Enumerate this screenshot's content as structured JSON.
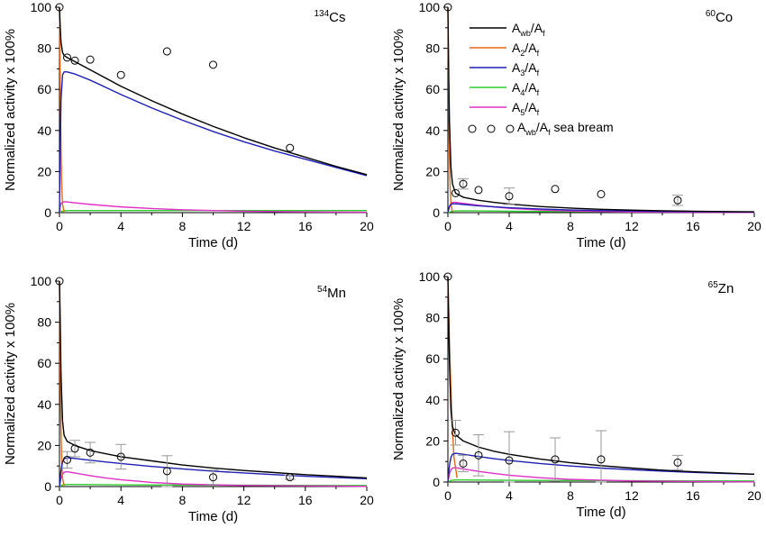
{
  "legend": {
    "labels": [
      {
        "sym": "A",
        "sub": "wb",
        "tail": "/A",
        "tsub": "f",
        "extra": ""
      },
      {
        "sym": "A",
        "sub": "2",
        "tail": "/A",
        "tsub": "f",
        "extra": ""
      },
      {
        "sym": "A",
        "sub": "3",
        "tail": "/A",
        "tsub": "f",
        "extra": ""
      },
      {
        "sym": "A",
        "sub": "4",
        "tail": "/A",
        "tsub": "f",
        "extra": ""
      },
      {
        "sym": "A",
        "sub": "5",
        "tail": "/A",
        "tsub": "f",
        "extra": ""
      },
      {
        "sym": "A",
        "sub": "wb",
        "tail": "/A",
        "tsub": "f",
        "extra": " sea bream"
      }
    ],
    "colors": [
      "#000000",
      "#e8671c",
      "#1f1fb4",
      "#2ecc2e",
      "#e030c8",
      "#000000"
    ]
  },
  "chart_data": [
    {
      "type": "line",
      "nuclide_sup": "134",
      "nuclide": "Cs",
      "xlabel": "Time (d)",
      "ylabel": "Normalized activity x 100%",
      "xlim": [
        0,
        20
      ],
      "ylim": [
        0,
        100
      ],
      "xticks": [
        0,
        4,
        8,
        12,
        16,
        20
      ],
      "yticks": [
        0,
        20,
        40,
        60,
        80,
        100
      ],
      "series": [
        {
          "x": [
            0,
            0.05,
            0.1,
            0.2,
            0.3,
            0.5,
            1,
            2,
            3,
            4,
            6,
            8,
            10,
            12,
            14,
            16,
            18,
            20
          ],
          "y": [
            100,
            90,
            83,
            78,
            76.5,
            75.5,
            73.5,
            69.5,
            65.5,
            61.5,
            54.5,
            48,
            42,
            36.5,
            31.5,
            27,
            22.5,
            18.5
          ]
        },
        {
          "x": [
            0,
            0.03,
            0.06,
            0.1,
            0.15,
            0.2,
            0.3
          ],
          "y": [
            100,
            80,
            55,
            30,
            12,
            4,
            0.5
          ]
        },
        {
          "x": [
            0,
            0.05,
            0.1,
            0.2,
            0.3,
            0.5,
            1,
            2,
            3,
            4,
            6,
            8,
            10,
            12,
            14,
            16,
            18,
            20
          ],
          "y": [
            0,
            30,
            55,
            67,
            68.5,
            68.5,
            67.5,
            64.5,
            61,
            57.5,
            51,
            45,
            39.5,
            34.5,
            30,
            26,
            22,
            18
          ]
        },
        {
          "x": [
            0,
            0.2,
            0.5,
            1,
            5,
            10,
            20
          ],
          "y": [
            0,
            0.8,
            1,
            1,
            1,
            1,
            1
          ]
        },
        {
          "x": [
            0,
            0.05,
            0.1,
            0.2,
            0.4,
            1,
            2,
            4,
            6,
            8,
            10,
            12,
            15,
            20
          ],
          "y": [
            0,
            3,
            4.5,
            5.2,
            5.3,
            4.8,
            4,
            2.8,
            2,
            1.4,
            1,
            0.7,
            0.4,
            0.2
          ]
        }
      ],
      "points": {
        "x": [
          0,
          0.5,
          1,
          2,
          4,
          7,
          10,
          15
        ],
        "y": [
          100,
          75.5,
          74,
          74.5,
          67,
          78.5,
          72,
          31.5
        ],
        "err": [
          0,
          0,
          0,
          0,
          0,
          0,
          0,
          0
        ]
      }
    },
    {
      "type": "line",
      "nuclide_sup": "60",
      "nuclide": "Co",
      "xlabel": "Time (d)",
      "ylabel": "Normalized activity x 100%",
      "xlim": [
        0,
        20
      ],
      "ylim": [
        0,
        100
      ],
      "xticks": [
        0,
        4,
        8,
        12,
        16,
        20
      ],
      "yticks": [
        0,
        20,
        40,
        60,
        80,
        100
      ],
      "series": [
        {
          "x": [
            0,
            0.05,
            0.1,
            0.2,
            0.3,
            0.5,
            1,
            2,
            3,
            4,
            6,
            8,
            10,
            12,
            14,
            16,
            18,
            20
          ],
          "y": [
            100,
            70,
            45,
            22,
            14,
            9.5,
            7.5,
            6,
            5,
            4.2,
            3,
            2.2,
            1.6,
            1.2,
            0.9,
            0.7,
            0.5,
            0.4
          ]
        },
        {
          "x": [
            0,
            0.03,
            0.06,
            0.1,
            0.15,
            0.2,
            0.3
          ],
          "y": [
            100,
            75,
            50,
            28,
            12,
            4,
            0.5
          ]
        },
        {
          "x": [
            0,
            0.1,
            0.2,
            0.3,
            0.5,
            1,
            2,
            4,
            6,
            8,
            10,
            14,
            20
          ],
          "y": [
            0,
            3,
            4,
            4.3,
            4.3,
            4,
            3.3,
            2.4,
            1.8,
            1.3,
            1,
            0.6,
            0.3
          ]
        },
        {
          "x": [
            0,
            0.2,
            0.5,
            1,
            5,
            20
          ],
          "y": [
            0,
            0.5,
            0.8,
            0.9,
            0.6,
            0.3
          ]
        },
        {
          "x": [
            0,
            0.1,
            0.2,
            0.3,
            0.5,
            1,
            2,
            3,
            4,
            6,
            8,
            12,
            20
          ],
          "y": [
            0,
            3,
            4.5,
            5,
            5,
            4.5,
            3.6,
            2.8,
            2.1,
            1.3,
            0.8,
            0.3,
            0.1
          ]
        }
      ],
      "points": {
        "x": [
          0,
          0.5,
          1,
          2,
          4,
          7,
          10,
          15
        ],
        "y": [
          100,
          9.5,
          14,
          11,
          8,
          11.5,
          9,
          6
        ],
        "err": [
          0,
          0,
          2.5,
          0,
          4,
          0,
          0,
          2.5
        ]
      }
    },
    {
      "type": "line",
      "nuclide_sup": "54",
      "nuclide": "Mn",
      "xlabel": "Time (d)",
      "ylabel": "Normalized activity x 100%",
      "xlim": [
        0,
        20
      ],
      "ylim": [
        0,
        100
      ],
      "xticks": [
        0,
        4,
        8,
        12,
        16,
        20
      ],
      "yticks": [
        0,
        20,
        40,
        60,
        80,
        100
      ],
      "series": [
        {
          "x": [
            0,
            0.05,
            0.1,
            0.2,
            0.3,
            0.5,
            1,
            2,
            3,
            4,
            6,
            8,
            10,
            12,
            14,
            16,
            18,
            20
          ],
          "y": [
            100,
            80,
            55,
            32,
            25,
            22,
            20,
            17.5,
            16,
            14.5,
            12.5,
            10.5,
            9,
            7.8,
            6.8,
            5.8,
            5,
            4.2
          ]
        },
        {
          "x": [
            0,
            0.03,
            0.06,
            0.1,
            0.15,
            0.2,
            0.3
          ],
          "y": [
            100,
            75,
            50,
            28,
            12,
            4,
            0.5
          ]
        },
        {
          "x": [
            0,
            0.1,
            0.2,
            0.3,
            0.5,
            1,
            2,
            3,
            4,
            6,
            8,
            10,
            12,
            14,
            16,
            18,
            20
          ],
          "y": [
            0,
            8,
            12,
            13.5,
            14,
            13.7,
            12.8,
            12,
            11.2,
            9.8,
            8.6,
            7.5,
            6.6,
            5.8,
            5,
            4.4,
            3.8
          ]
        },
        {
          "x": [
            0,
            0.2,
            0.5,
            1,
            5,
            20
          ],
          "y": [
            0,
            0.8,
            1,
            1,
            0.8,
            0.5
          ]
        },
        {
          "x": [
            0,
            0.1,
            0.2,
            0.3,
            0.5,
            1,
            2,
            3,
            4,
            6,
            8,
            12,
            20
          ],
          "y": [
            0,
            4,
            6,
            7,
            7.2,
            6.6,
            5.3,
            4.2,
            3.3,
            2,
            1.2,
            0.5,
            0.1
          ]
        }
      ],
      "points": {
        "x": [
          0,
          0.5,
          1,
          2,
          4,
          7,
          10,
          15
        ],
        "y": [
          100,
          13,
          18.5,
          16.5,
          14.5,
          7.5,
          4.5,
          4.5
        ],
        "err": [
          0,
          4,
          4,
          5,
          6,
          7.5,
          3.5,
          1
        ]
      }
    },
    {
      "type": "line",
      "nuclide_sup": "65",
      "nuclide": "Zn",
      "xlabel": "Time (d)",
      "ylabel": "Normalized activity x 100%",
      "xlim": [
        0,
        20
      ],
      "ylim": [
        0,
        100
      ],
      "xticks": [
        0,
        4,
        8,
        12,
        16,
        20
      ],
      "yticks": [
        0,
        20,
        40,
        60,
        80,
        100
      ],
      "series": [
        {
          "x": [
            0,
            0.05,
            0.1,
            0.2,
            0.3,
            0.5,
            1,
            2,
            3,
            4,
            6,
            8,
            10,
            12,
            14,
            16,
            18,
            20
          ],
          "y": [
            100,
            80,
            58,
            35,
            27,
            23,
            20,
            17,
            15,
            13.5,
            11.2,
            9.4,
            8,
            6.8,
            5.8,
            5,
            4.4,
            3.8
          ]
        },
        {
          "x": [
            0,
            0.05,
            0.1,
            0.2,
            0.3,
            0.4,
            0.6
          ],
          "y": [
            100,
            85,
            70,
            45,
            25,
            12,
            2
          ]
        },
        {
          "x": [
            0,
            0.1,
            0.2,
            0.3,
            0.5,
            1,
            2,
            3,
            4,
            6,
            8,
            10,
            12,
            14,
            16,
            18,
            20
          ],
          "y": [
            0,
            8,
            12,
            13.5,
            14,
            13.5,
            12.4,
            11.4,
            10.5,
            9,
            7.8,
            6.8,
            6,
            5.3,
            4.7,
            4.2,
            3.8
          ]
        },
        {
          "x": [
            0,
            0.2,
            0.5,
            1,
            5,
            20
          ],
          "y": [
            0,
            0.8,
            1,
            1,
            0.8,
            0.5
          ]
        },
        {
          "x": [
            0,
            0.1,
            0.2,
            0.3,
            0.5,
            1,
            2,
            3,
            4,
            6,
            8,
            12,
            20
          ],
          "y": [
            0,
            4,
            6,
            6.8,
            7,
            6.4,
            5.2,
            4.2,
            3.3,
            2.1,
            1.3,
            0.5,
            0.1
          ]
        }
      ],
      "points": {
        "x": [
          0,
          0.5,
          1,
          2,
          4,
          7,
          10,
          15
        ],
        "y": [
          100,
          24,
          9,
          13,
          10.5,
          11,
          11,
          9.5
        ],
        "err": [
          0,
          6,
          4,
          10,
          14,
          10.5,
          14,
          3.5
        ]
      }
    }
  ]
}
